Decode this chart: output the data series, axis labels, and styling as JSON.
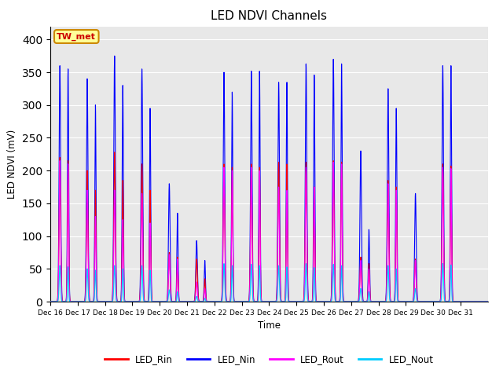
{
  "title": "LED NDVI Channels",
  "xlabel": "Time",
  "ylabel": "LED NDVI (mV)",
  "ylim": [
    0,
    420
  ],
  "background_color": "#e8e8e8",
  "annotation_text": "TW_met",
  "annotation_bg": "#ffff99",
  "annotation_border": "#cc8800",
  "legend_labels": [
    "LED_Rin",
    "LED_Nin",
    "LED_Rout",
    "LED_Nout"
  ],
  "legend_colors": [
    "#ff0000",
    "#0000ff",
    "#ff00ff",
    "#00ccff"
  ],
  "line_colors": {
    "LED_Rin": "#ff0000",
    "LED_Nin": "#0000ff",
    "LED_Rout": "#ff00ff",
    "LED_Nout": "#00ccff"
  },
  "tick_labels": [
    "Dec 16",
    "Dec 17",
    "Dec 18",
    "Dec 19",
    "Dec 20",
    "Dec 21",
    "Dec 22",
    "Dec 23",
    "Dec 24",
    "Dec 25",
    "Dec 26",
    "Dec 27",
    "Dec 28",
    "Dec 29",
    "Dec 30",
    "Dec 31"
  ],
  "peaks_Nin": [
    360,
    340,
    375,
    355,
    180,
    93,
    350,
    352,
    335,
    363,
    370,
    230,
    325,
    165,
    360,
    0
  ],
  "peaks_Nin2": [
    355,
    300,
    330,
    295,
    135,
    63,
    320,
    352,
    335,
    346,
    363,
    110,
    295,
    0,
    360,
    0
  ],
  "peaks_Rin": [
    220,
    200,
    228,
    210,
    75,
    65,
    210,
    210,
    213,
    213,
    215,
    68,
    185,
    65,
    210,
    0
  ],
  "peaks_Rin2": [
    215,
    170,
    185,
    170,
    68,
    35,
    205,
    205,
    210,
    175,
    213,
    58,
    175,
    0,
    207,
    0
  ],
  "peaks_Rout": [
    215,
    170,
    170,
    165,
    72,
    30,
    205,
    205,
    175,
    205,
    213,
    63,
    180,
    63,
    205,
    0
  ],
  "peaks_Rout2": [
    210,
    130,
    125,
    120,
    65,
    20,
    200,
    200,
    170,
    175,
    210,
    50,
    170,
    0,
    203,
    0
  ],
  "peaks_Nout": [
    55,
    50,
    55,
    55,
    18,
    8,
    58,
    57,
    55,
    58,
    57,
    20,
    55,
    20,
    58,
    0
  ],
  "peaks_Nout2": [
    53,
    48,
    50,
    48,
    15,
    5,
    55,
    55,
    53,
    52,
    55,
    15,
    50,
    0,
    56,
    0
  ]
}
